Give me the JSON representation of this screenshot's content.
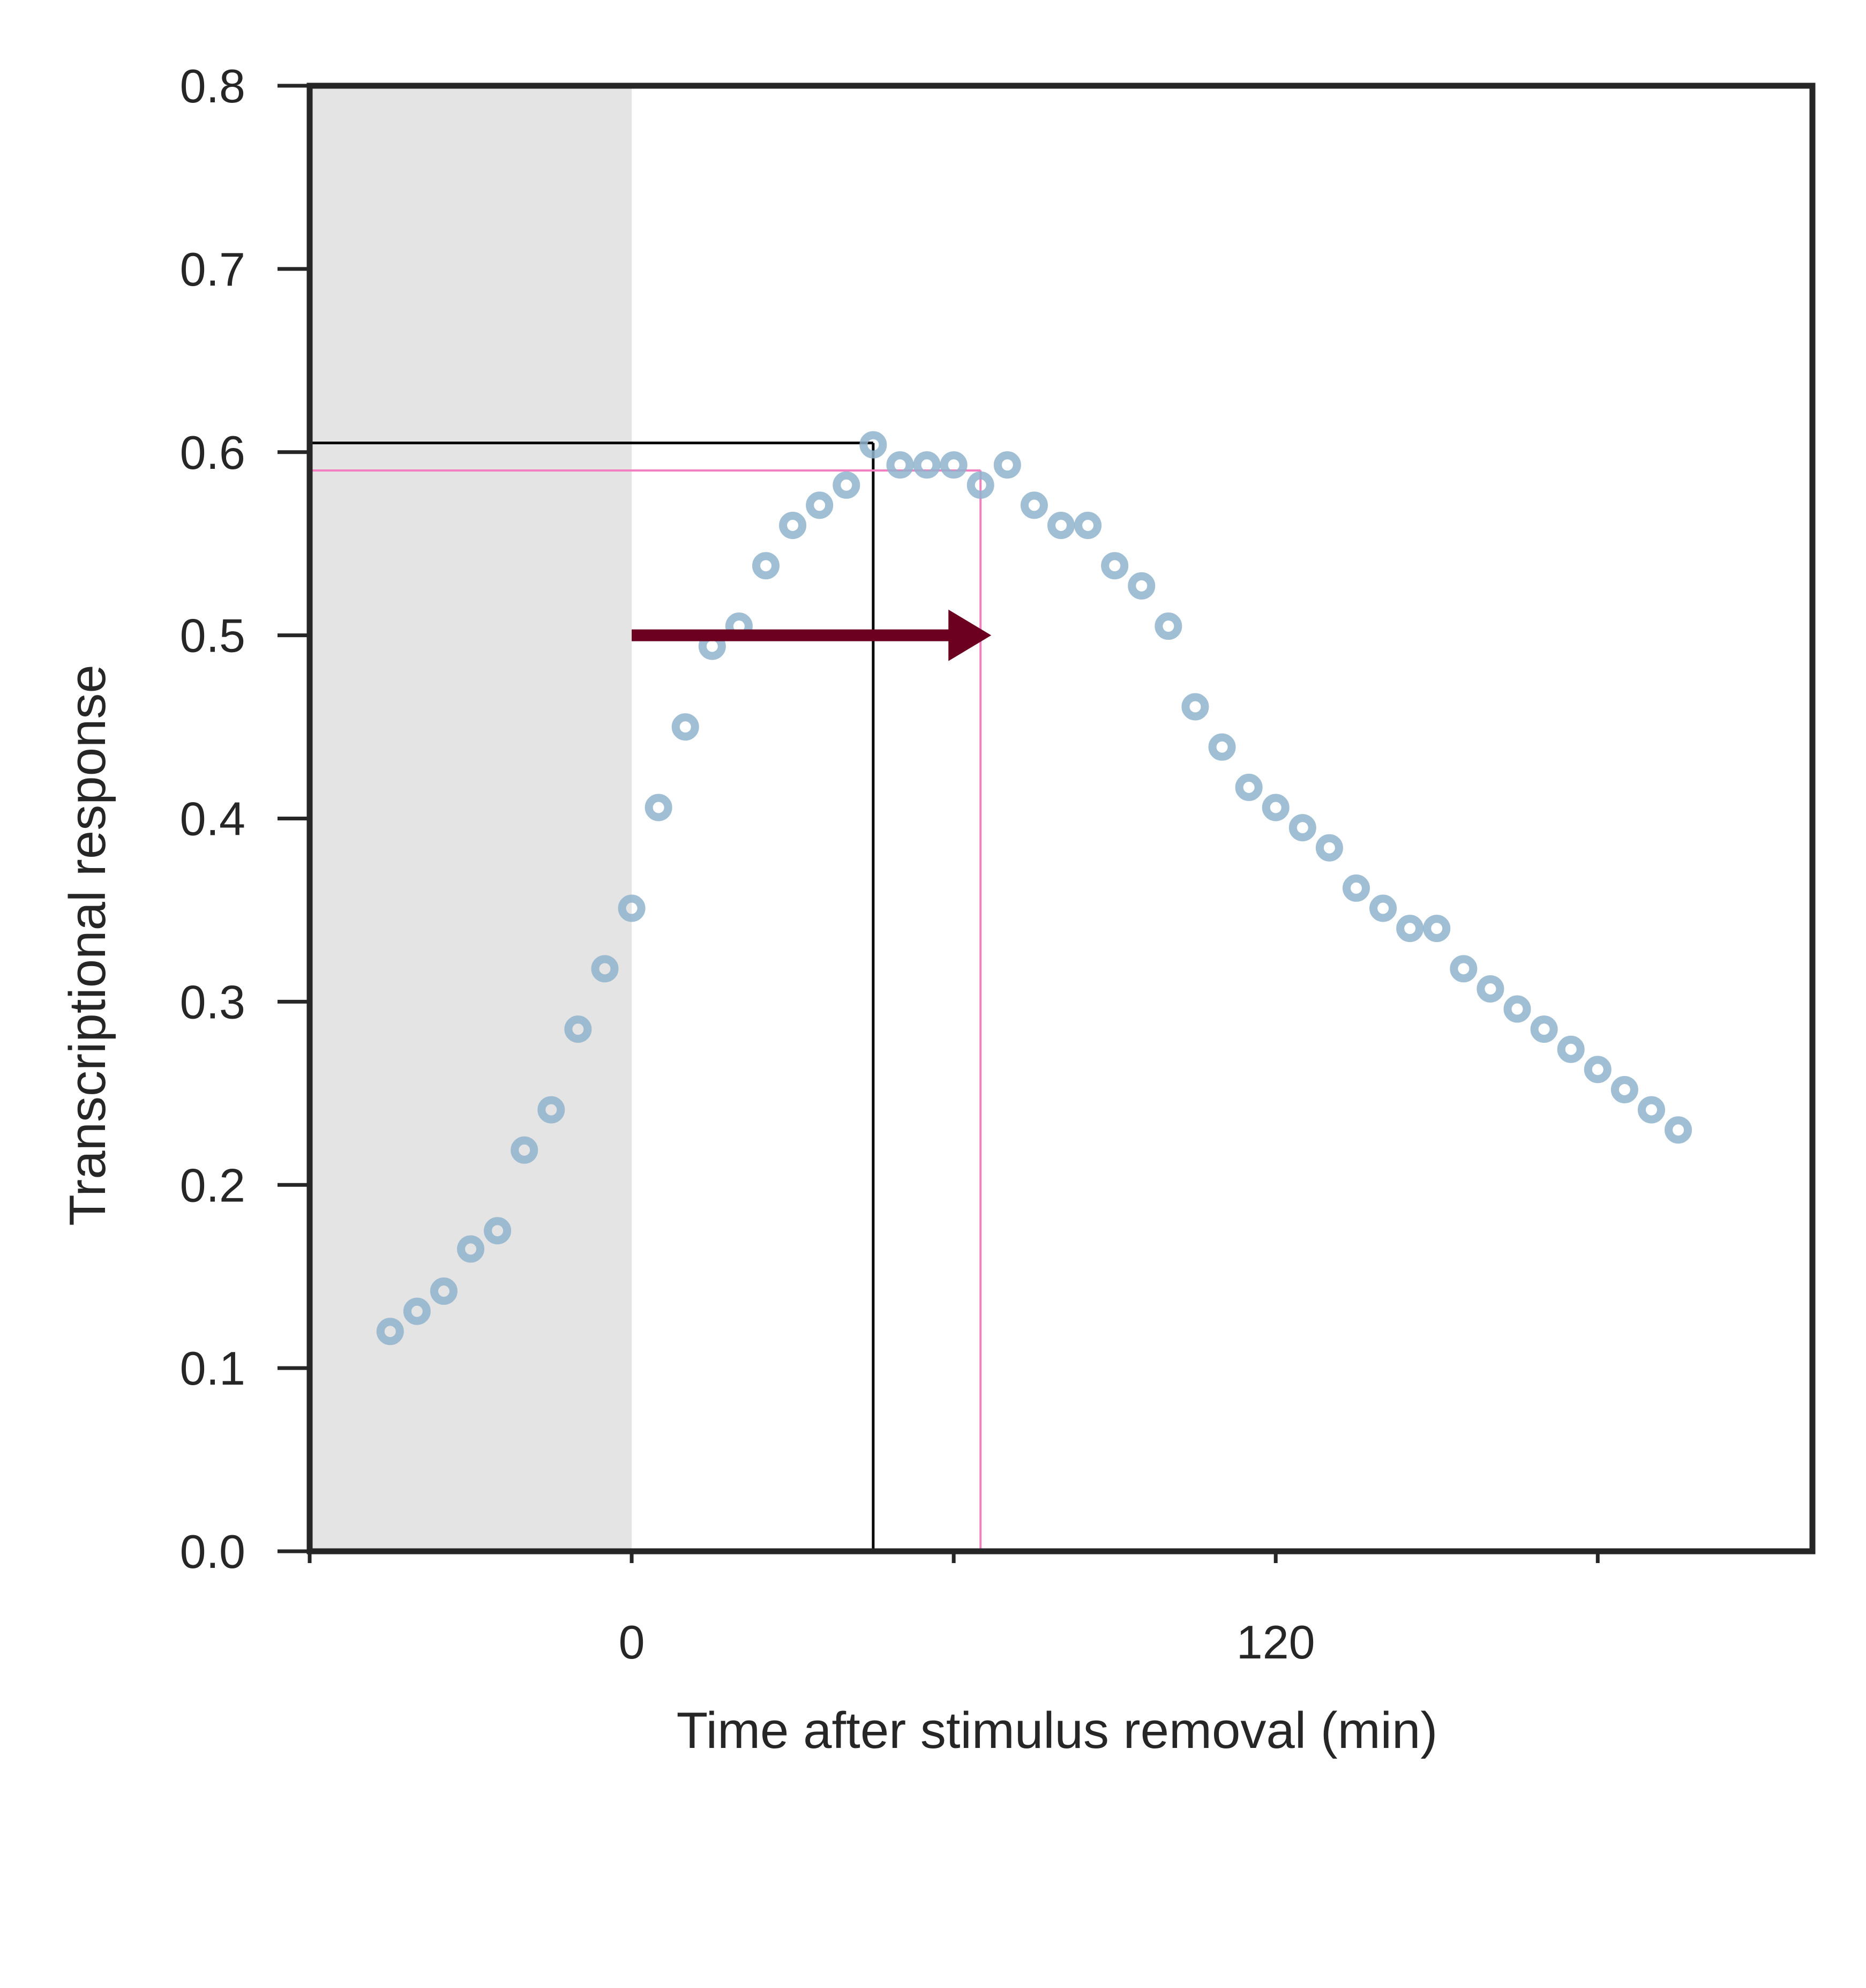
{
  "chart_data": {
    "type": "scatter",
    "xlabel": "Time after stimulus removal (min)",
    "ylabel": "Transcriptional response",
    "xlim": [
      -60,
      220
    ],
    "ylim": [
      0.0,
      0.8
    ],
    "xticks": [
      {
        "value": -60,
        "label": ""
      },
      {
        "value": 0,
        "label": "0"
      },
      {
        "value": 60,
        "label": ""
      },
      {
        "value": 120,
        "label": "120"
      },
      {
        "value": 180,
        "label": ""
      }
    ],
    "yticks": [
      {
        "value": 0.0,
        "label": "0.0"
      },
      {
        "value": 0.1,
        "label": "0.1"
      },
      {
        "value": 0.2,
        "label": "0.2"
      },
      {
        "value": 0.3,
        "label": "0.3"
      },
      {
        "value": 0.4,
        "label": "0.4"
      },
      {
        "value": 0.5,
        "label": "0.5"
      },
      {
        "value": 0.6,
        "label": "0.6"
      },
      {
        "value": 0.7,
        "label": "0.7"
      },
      {
        "value": 0.8,
        "label": "0.8"
      }
    ],
    "grid": false,
    "shaded_region": {
      "x": [
        -60,
        0
      ],
      "color": "#e4e4e4"
    },
    "series": [
      {
        "marker_color": "#8fb3cc",
        "x": [
          -45,
          -40,
          -35,
          -30,
          -25,
          -20,
          -15,
          -10,
          -5,
          0,
          5,
          10,
          15,
          20,
          25,
          30,
          35,
          40,
          45,
          50,
          55,
          60,
          65,
          70,
          75,
          80,
          85,
          90,
          95,
          100,
          105,
          110,
          115,
          120,
          125,
          130,
          135,
          140,
          145,
          150,
          155,
          160,
          165,
          170,
          175,
          180,
          185,
          190,
          195
        ],
        "y": [
          0.12,
          0.131,
          0.142,
          0.165,
          0.175,
          0.219,
          0.241,
          0.285,
          0.318,
          0.351,
          0.406,
          0.45,
          0.494,
          0.505,
          0.538,
          0.56,
          0.571,
          0.582,
          0.604,
          0.593,
          0.593,
          0.593,
          0.582,
          0.593,
          0.571,
          0.56,
          0.56,
          0.538,
          0.527,
          0.505,
          0.461,
          0.439,
          0.417,
          0.406,
          0.395,
          0.384,
          0.362,
          0.351,
          0.34,
          0.34,
          0.318,
          0.307,
          0.296,
          0.285,
          0.274,
          0.263,
          0.252,
          0.241,
          0.23
        ]
      }
    ],
    "reference_lines": [
      {
        "color": "#000000",
        "x": 45,
        "y": 0.605
      },
      {
        "color": "#f080c0",
        "x": 65,
        "y": 0.59
      }
    ],
    "arrow": {
      "color": "#6b0020",
      "x_start": 0,
      "x_end": 67,
      "y": 0.5
    },
    "spine_color": "#262626"
  }
}
